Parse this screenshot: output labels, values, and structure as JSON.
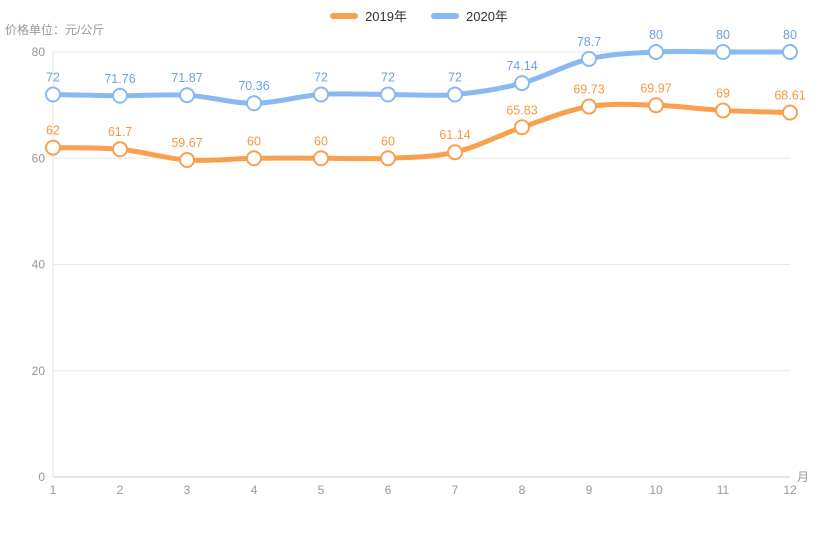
{
  "chart_data": {
    "type": "line",
    "title": "",
    "unit_label": "价格单位：元/公斤",
    "xlabel": "月",
    "x": [
      1,
      2,
      3,
      4,
      5,
      6,
      7,
      8,
      9,
      10,
      11,
      12
    ],
    "series": [
      {
        "name": "2019年",
        "color": "#f9a04e",
        "label_color": "#f7993e",
        "values": [
          62,
          61.7,
          59.67,
          60,
          60,
          60,
          61.14,
          65.83,
          69.73,
          69.97,
          69,
          68.61
        ]
      },
      {
        "name": "2020年",
        "color": "#89b9f2",
        "label_color": "#6fa0e6",
        "values": [
          72,
          71.76,
          71.87,
          70.36,
          72,
          72,
          72,
          74.14,
          78.7,
          80,
          80,
          80
        ]
      }
    ],
    "ylim": [
      0,
      80
    ],
    "yticks": [
      0,
      20,
      40,
      60,
      80
    ],
    "grid": true,
    "smooth": true,
    "legend_position": "top-center",
    "axis_colors": {
      "tick_label": "#999999",
      "grid_line": "#e9e9e9",
      "y_axis_line": "#e4e4e4",
      "x_axis_line": "#cccccc"
    }
  }
}
